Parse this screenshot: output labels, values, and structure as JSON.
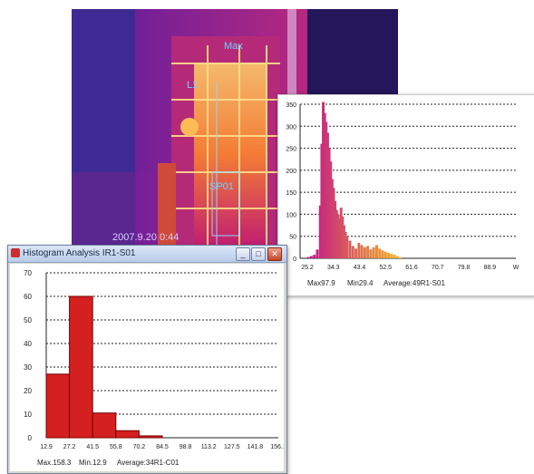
{
  "thermal": {
    "labels": {
      "max": "Max",
      "marker": "L1",
      "spot": "SP01",
      "timestamp": "2007.9.20 0:44"
    }
  },
  "colors": {
    "grid": "#222222",
    "bar_red": "#d42020",
    "bar_border": "#7a0000",
    "accent_pink": "#c2168c",
    "accent_yellow": "#f3b51f"
  },
  "window_back": {
    "footer": {
      "max": "Max97.9",
      "min": "Min29.4",
      "average": "Average:49R1-S01"
    }
  },
  "window_front": {
    "title": "Histogram Analysis  IR1-S01",
    "buttons": {
      "minimize": "_",
      "maximize": "□",
      "close": "✕"
    },
    "footer": {
      "max": "Max.158.3",
      "min": "Min.12.9",
      "average": "Average:34R1-C01"
    }
  },
  "chart_data": [
    {
      "type": "bar",
      "y_ticks": [
        "0",
        "50",
        "100",
        "150",
        "200",
        "250",
        "300",
        "350"
      ],
      "x_ticks": [
        "25.2",
        "34.3",
        "43.4",
        "52.5",
        "61.6",
        "70.7",
        "79.8",
        "88.9",
        "W"
      ],
      "ylim": [
        0,
        350
      ],
      "xlim": [
        25.2,
        97.9
      ],
      "grid": "horizontal-dashed",
      "x": [
        28.0,
        29.0,
        30.0,
        31.0,
        32.0,
        32.5,
        33.0,
        33.5,
        34.0,
        34.5,
        35.0,
        35.5,
        36.0,
        36.5,
        37.0,
        37.5,
        38.0,
        38.5,
        39.0,
        39.5,
        40.0,
        40.5,
        41.0,
        42.0,
        43.0,
        44.0,
        45.0,
        46.0,
        47.0,
        48.0,
        49.0,
        50.0,
        51.0,
        52.0,
        53.0,
        54.0,
        55.0,
        56.0,
        57.0,
        58.0,
        59.0
      ],
      "values": [
        3,
        5,
        8,
        20,
        120,
        260,
        355,
        330,
        310,
        285,
        250,
        220,
        180,
        160,
        130,
        110,
        100,
        90,
        115,
        95,
        75,
        60,
        50,
        40,
        28,
        22,
        35,
        30,
        25,
        28,
        20,
        25,
        30,
        22,
        18,
        15,
        12,
        10,
        8,
        5,
        2
      ]
    },
    {
      "type": "bar",
      "y_ticks": [
        "0",
        "10",
        "20",
        "30",
        "40",
        "50",
        "60",
        "70"
      ],
      "x_ticks": [
        "12.9",
        "27.2",
        "41.5",
        "55.8",
        "70.2",
        "84.5",
        "98.8",
        "113.2",
        "127.5",
        "141.8",
        "156.1"
      ],
      "ylim": [
        0,
        70
      ],
      "grid": "horizontal-dashed",
      "values": [
        27,
        60,
        10.5,
        3,
        0.8,
        0,
        0,
        0,
        0,
        0
      ]
    }
  ]
}
